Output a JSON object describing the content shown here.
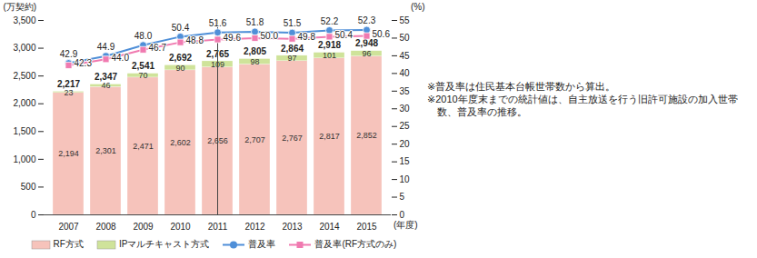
{
  "chart_data": {
    "type": "bar",
    "stacked": true,
    "data_labels": true,
    "legend": "bottom",
    "y_label": "(万契約)",
    "y2_label": "(%)",
    "x_label": "(年度)",
    "categories": [
      "2007",
      "2008",
      "2009",
      "2010",
      "2011",
      "2012",
      "2013",
      "2014",
      "2015"
    ],
    "series": [
      {
        "name": "RF方式",
        "type": "bar",
        "color": "#f6c3bb",
        "values": [
          2194,
          2301,
          2471,
          2602,
          2656,
          2707,
          2767,
          2817,
          2852
        ],
        "value_labels": [
          "2,194",
          "2,301",
          "2,471",
          "2,602",
          "2,656",
          "2,707",
          "2,767",
          "2,817",
          "2,852"
        ]
      },
      {
        "name": "IPマルチキャスト方式",
        "type": "bar",
        "color": "#cfe39a",
        "values": [
          23,
          46,
          70,
          90,
          109,
          98,
          97,
          101,
          96
        ]
      },
      {
        "name": "普及率",
        "type": "line",
        "axis": "y2",
        "color": "#4f8fd8",
        "marker": "circle",
        "values": [
          42.9,
          44.9,
          48.0,
          50.4,
          51.6,
          51.8,
          51.5,
          52.2,
          52.3
        ],
        "value_labels": [
          "42.9",
          "44.9",
          "48.0",
          "50.4",
          "51.6",
          "51.8",
          "51.5",
          "52.2",
          "52.3"
        ]
      },
      {
        "name": "普及率(RF方式のみ)",
        "type": "line",
        "axis": "y2",
        "color": "#f07ab0",
        "marker": "square",
        "values": [
          42.3,
          44.0,
          46.7,
          48.8,
          49.6,
          50.0,
          49.8,
          50.4,
          50.6
        ],
        "value_labels": [
          "42.3",
          "44.0",
          "46.7",
          "48.8",
          "49.6",
          "50.0",
          "49.8",
          "50.4",
          "50.6"
        ]
      }
    ],
    "totals": {
      "values": [
        2217,
        2347,
        2541,
        2692,
        2765,
        2805,
        2864,
        2918,
        2948
      ],
      "value_labels": [
        "2,217",
        "2,347",
        "2,541",
        "2,692",
        "2,765",
        "2,805",
        "2,864",
        "2,918",
        "2,948"
      ]
    },
    "ylim": [
      0,
      3500
    ],
    "yticks": [
      0,
      500,
      {
        "value": 1000,
        "label": "1,000"
      },
      {
        "value": 1500,
        "label": "1,500"
      },
      {
        "value": 2000,
        "label": "2,000"
      },
      {
        "value": 2500,
        "label": "2,500"
      },
      {
        "value": 3000,
        "label": "3,000"
      },
      {
        "value": 3500,
        "label": "3,500"
      }
    ],
    "y2lim": [
      0,
      55
    ],
    "y2ticks": [
      0,
      5,
      10,
      15,
      20,
      25,
      30,
      35,
      40,
      45,
      50,
      55
    ],
    "annotations": [
      "※普及率は住民基本台帳世帯数から算出。",
      "※2010年度末までの統計値は、自主放送を行う旧許可施設の加入世帯数、普及率の推移。"
    ]
  }
}
